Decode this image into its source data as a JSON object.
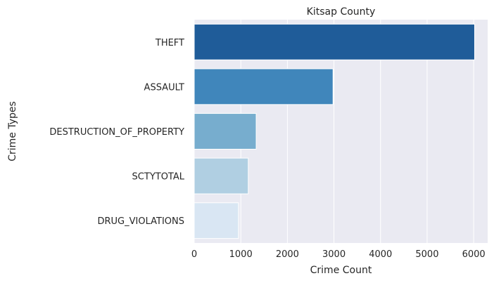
{
  "chart_data": {
    "type": "bar",
    "orientation": "horizontal",
    "title": "Kitsap County",
    "xlabel": "Crime Count",
    "ylabel": "Crime Types",
    "categories": [
      "THEFT",
      "ASSAULT",
      "DESTRUCTION_OF_PROPERTY",
      "SCTYTOTAL",
      "DRUG_VIOLATIONS"
    ],
    "values": [
      6020,
      2980,
      1330,
      1160,
      950
    ],
    "colors": [
      "#1f5c99",
      "#4086bb",
      "#77adce",
      "#b0cfe2",
      "#d9e6f3"
    ],
    "xlim": [
      0,
      6300
    ],
    "xticks": [
      0,
      1000,
      2000,
      3000,
      4000,
      5000,
      6000
    ],
    "grid": true,
    "background": "#eaeaf2"
  }
}
